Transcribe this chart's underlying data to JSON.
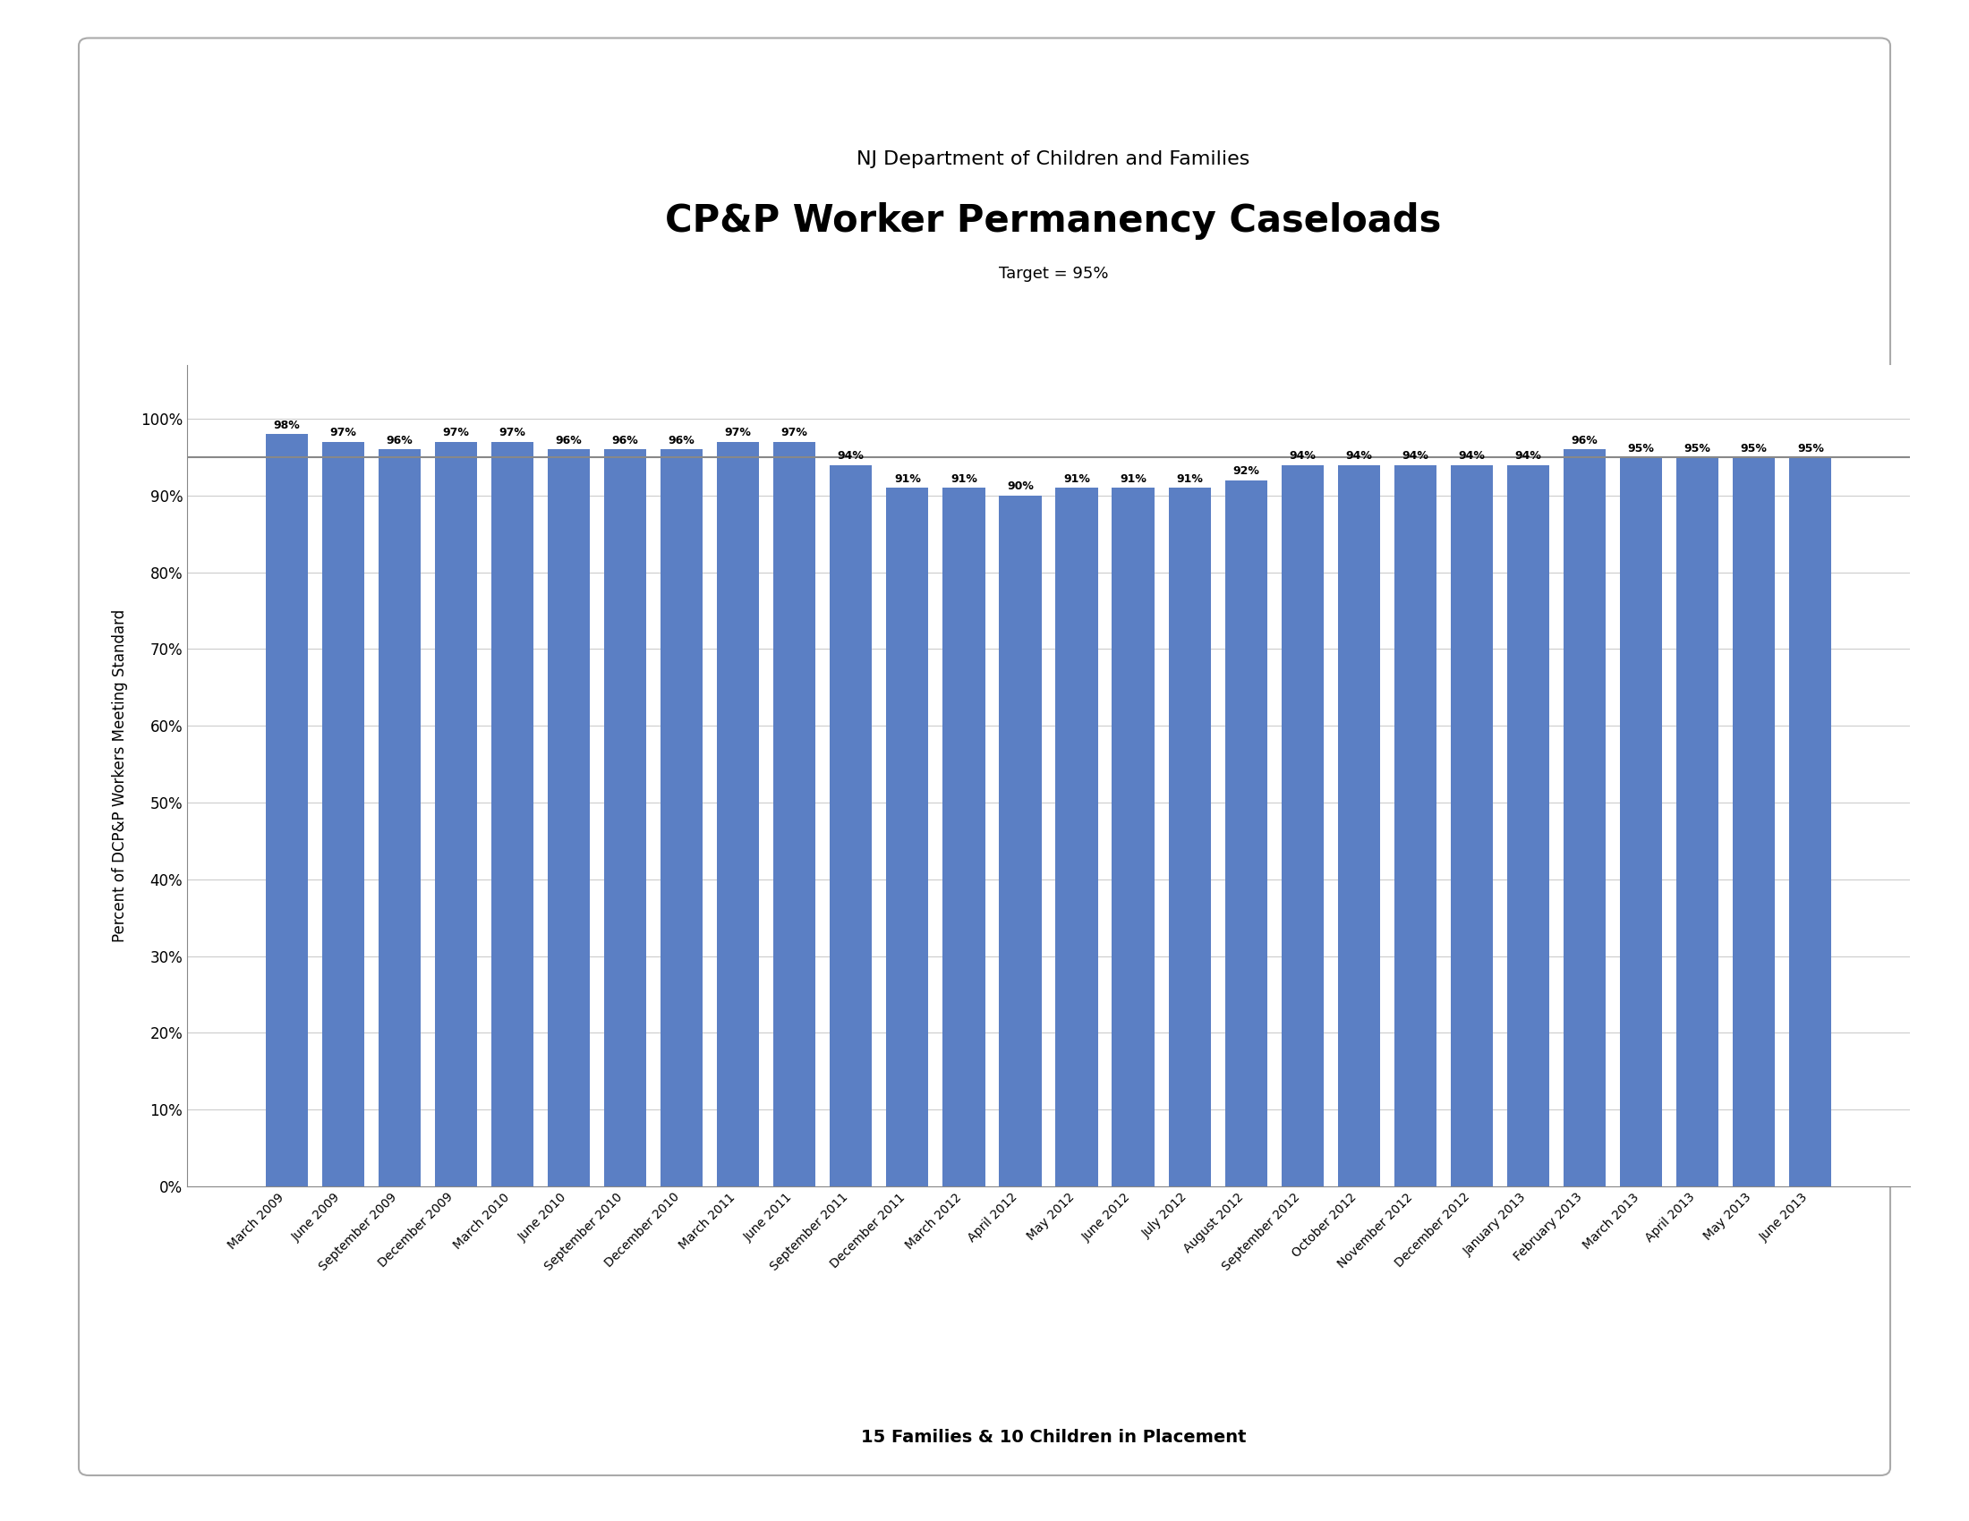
{
  "supertitle": "NJ Department of Children and Families",
  "title": "CP&P Worker Permanency Caseloads",
  "subtitle": "Target = 95%",
  "xlabel": "15 Families & 10 Children in Placement",
  "ylabel": "Percent of DCP&P Workers Meeting Standard",
  "target_line": 95,
  "categories": [
    "March 2009",
    "June 2009",
    "September 2009",
    "December 2009",
    "March 2010",
    "June 2010",
    "September 2010",
    "December 2010",
    "March 2011",
    "June 2011",
    "September 2011",
    "December 2011",
    "March 2012",
    "April 2012",
    "May 2012",
    "June 2012",
    "July 2012",
    "August 2012",
    "September 2012",
    "October 2012",
    "November 2012",
    "December 2012",
    "January 2013",
    "February 2013",
    "March 2013",
    "April 2013",
    "May 2013",
    "June 2013"
  ],
  "values": [
    98,
    97,
    96,
    97,
    97,
    96,
    96,
    96,
    97,
    97,
    94,
    91,
    91,
    90,
    91,
    91,
    91,
    92,
    94,
    94,
    94,
    94,
    94,
    96,
    95,
    95,
    95,
    95
  ],
  "bar_color": "#5B7FC4",
  "target_line_color": "#888888",
  "background_color": "#ffffff",
  "border_color": "#aaaaaa",
  "yticks": [
    0,
    10,
    20,
    30,
    40,
    50,
    60,
    70,
    80,
    90,
    100
  ],
  "ytick_labels": [
    "0%",
    "10%",
    "20%",
    "30%",
    "40%",
    "50%",
    "60%",
    "70%",
    "80%",
    "90%",
    "100%"
  ],
  "supertitle_fontsize": 16,
  "title_fontsize": 30,
  "subtitle_fontsize": 13,
  "bar_label_fontsize": 9,
  "xlabel_fontsize": 14,
  "ylabel_fontsize": 12,
  "ytick_fontsize": 12,
  "xtick_fontsize": 10
}
